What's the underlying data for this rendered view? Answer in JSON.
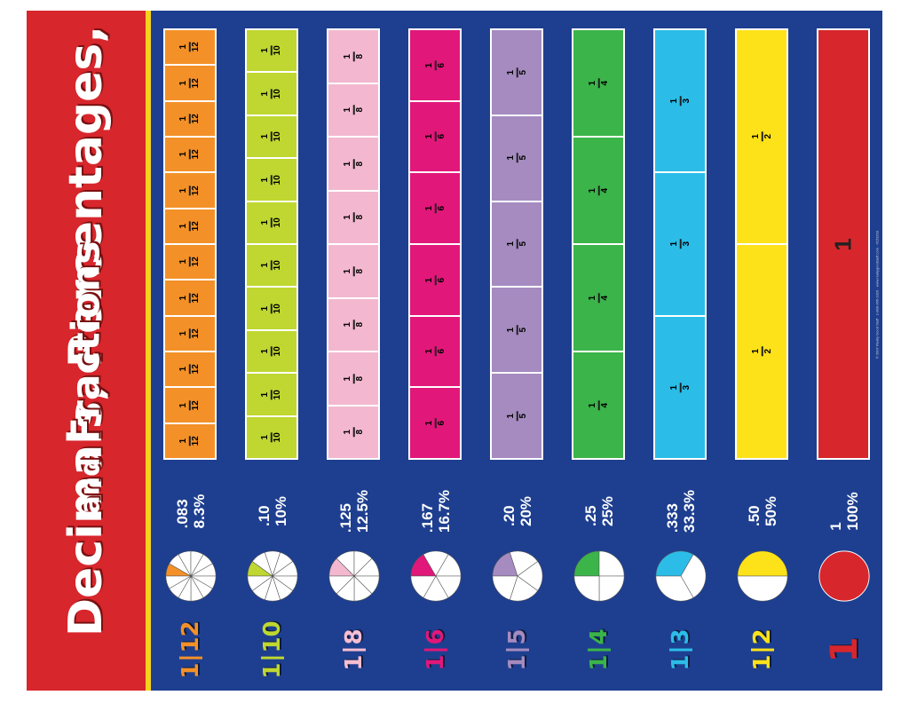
{
  "title": {
    "line1": "Decimals, Percentages,",
    "line2_small": "and",
    "line2_main": "Fractions"
  },
  "copyright": "© 2007 Really Good Stuff · 1-800-366-1920 · www.reallygoodstuff.com · #153203",
  "rows": [
    {
      "denominator": "12",
      "fraction_label": "1/12",
      "numerator": "1",
      "decimal": ".083",
      "percent": "8.3%",
      "color": "#f39128",
      "big_color": "#f39128"
    },
    {
      "denominator": "10",
      "fraction_label": "1/10",
      "numerator": "1",
      "decimal": ".10",
      "percent": "10%",
      "color": "#bfd730",
      "big_color": "#bfd730"
    },
    {
      "denominator": "8",
      "fraction_label": "1/8",
      "numerator": "1",
      "decimal": ".125",
      "percent": "12.5%",
      "color": "#f3b8cf",
      "big_color": "#f7bed2"
    },
    {
      "denominator": "6",
      "fraction_label": "1/6",
      "numerator": "1",
      "decimal": ".167",
      "percent": "16.7%",
      "color": "#e2177a",
      "big_color": "#e2177a"
    },
    {
      "denominator": "5",
      "fraction_label": "1/5",
      "numerator": "1",
      "decimal": ".20",
      "percent": "20%",
      "color": "#a58bc0",
      "big_color": "#a58bc0"
    },
    {
      "denominator": "4",
      "fraction_label": "1/4",
      "numerator": "1",
      "decimal": ".25",
      "percent": "25%",
      "color": "#3bb44a",
      "big_color": "#3bb44a"
    },
    {
      "denominator": "3",
      "fraction_label": "1/3",
      "numerator": "1",
      "decimal": ".333",
      "percent": "33.3%",
      "color": "#2bbde8",
      "big_color": "#2bbde8"
    },
    {
      "denominator": "2",
      "fraction_label": "1/2",
      "numerator": "1",
      "decimal": ".50",
      "percent": "50%",
      "color": "#fde21a",
      "big_color": "#fde21a"
    },
    {
      "denominator": "1",
      "fraction_label": "1",
      "numerator": "1",
      "decimal": "1",
      "percent": "100%",
      "color": "#d7262c",
      "big_color": "#d7262c",
      "whole": true
    }
  ]
}
